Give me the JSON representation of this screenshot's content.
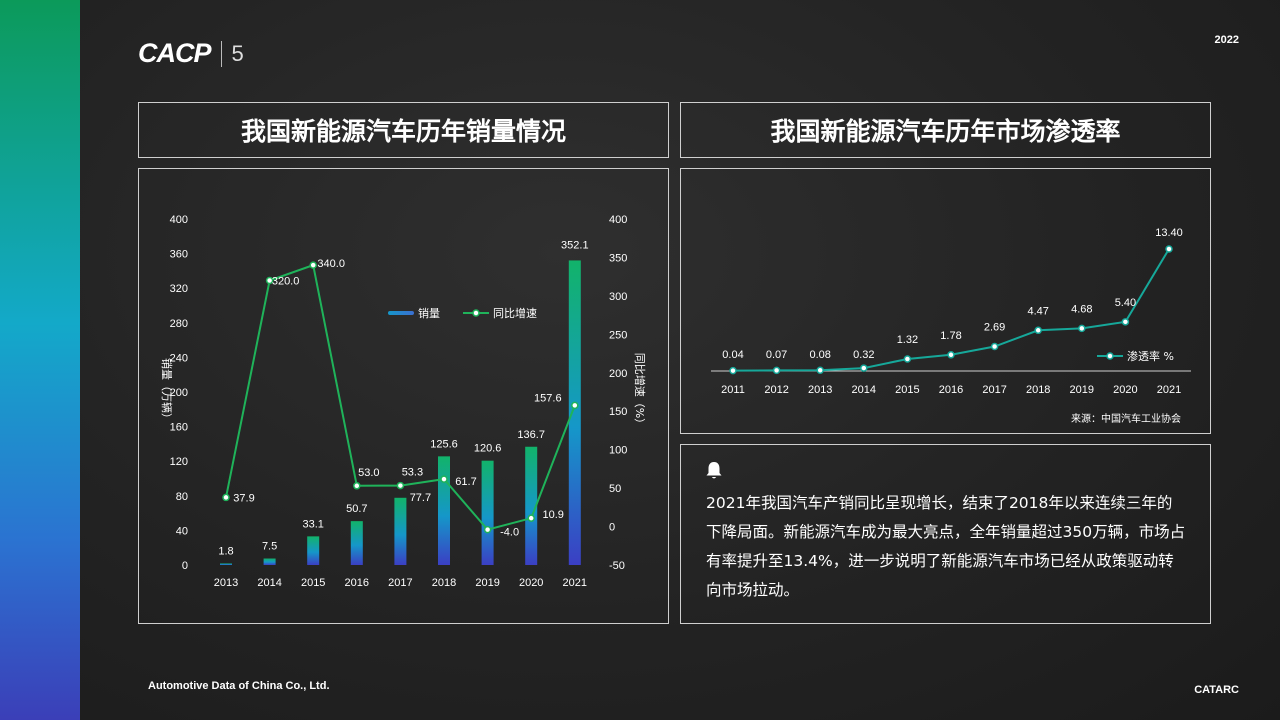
{
  "header": {
    "logo_text": "CACP",
    "logo_number": "5",
    "year": "2022"
  },
  "footer": {
    "company": "Automotive Data of China Co., Ltd.",
    "brand": "CATARC"
  },
  "panels": {
    "sales_title": "我国新能源汽车历年销量情况",
    "penetration_title": "我国新能源汽车历年市场渗透率",
    "summary_text": "2021年我国汽车产销同比呈现增长，结束了2018年以来连续三年的下降局面。新能源汽车成为最大亮点，全年销量超过350万辆，市场占有率提升至13.4%，进一步说明了新能源汽车市场已经从政策驱动转向市场拉动。"
  },
  "chart_data": [
    {
      "type": "bar",
      "categories": [
        "2013",
        "2014",
        "2015",
        "2016",
        "2017",
        "2018",
        "2019",
        "2020",
        "2021"
      ],
      "ylabel": "销量（万辆）",
      "y2label": "同比增速（%）",
      "ylim": [
        0,
        400
      ],
      "y_ticks": [
        0,
        40,
        80,
        120,
        160,
        200,
        240,
        280,
        320,
        360,
        400
      ],
      "y2lim": [
        -50,
        400
      ],
      "y2_ticks": [
        -50,
        0,
        50,
        100,
        150,
        200,
        250,
        300,
        350,
        400
      ],
      "legend_position": "top-right",
      "series": [
        {
          "name": "销量",
          "type": "bar",
          "values": [
            1.8,
            7.5,
            33.1,
            50.7,
            77.7,
            125.6,
            120.6,
            136.7,
            352.1
          ],
          "labels": [
            "1.8",
            "7.5",
            "33.1",
            "50.7",
            "77.7",
            "125.6",
            "120.6",
            "136.7",
            "352.1"
          ]
        },
        {
          "name": "同比增速",
          "type": "line",
          "axis": "right",
          "values": [
            37.9,
            320.0,
            340.0,
            53.0,
            53.3,
            61.7,
            -4.0,
            10.9,
            157.6
          ],
          "labels": [
            "37.9",
            "320.0",
            "340.0",
            "53.0",
            "53.3",
            "61.7",
            "-4.0",
            "10.9",
            "157.6"
          ]
        }
      ],
      "colors": {
        "bar_top": "#12b36a",
        "bar_bottom": "#3b3fc4",
        "line": "#1fb35a"
      }
    },
    {
      "type": "line",
      "categories": [
        "2011",
        "2012",
        "2013",
        "2014",
        "2015",
        "2016",
        "2017",
        "2018",
        "2019",
        "2020",
        "2021"
      ],
      "legend_position": "right",
      "source": "来源：中国汽车工业协会",
      "series": [
        {
          "name": "渗透率 %",
          "values": [
            0.04,
            0.07,
            0.08,
            0.32,
            1.32,
            1.78,
            2.69,
            4.47,
            4.68,
            5.4,
            13.4
          ],
          "labels": [
            "0.04",
            "0.07",
            "0.08",
            "0.32",
            "1.32",
            "1.78",
            "2.69",
            "4.47",
            "4.68",
            "5.40",
            "13.40"
          ]
        }
      ],
      "colors": {
        "line": "#16a89a"
      }
    }
  ]
}
